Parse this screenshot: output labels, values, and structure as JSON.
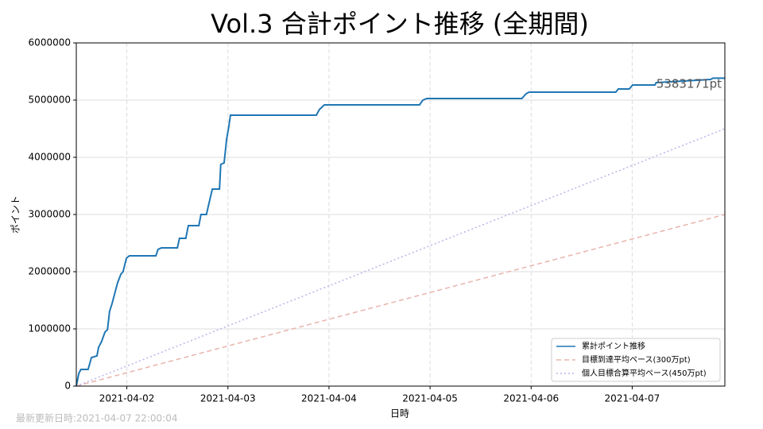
{
  "chart_data": {
    "type": "line",
    "title": "Vol.3 合計ポイント推移 (全期間)",
    "xlabel": "日時",
    "ylabel": "ポイント",
    "xlim": [
      "2021-04-01 12:00",
      "2021-04-07 22:00"
    ],
    "xticks": [
      "2021-04-02",
      "2021-04-03",
      "2021-04-04",
      "2021-04-05",
      "2021-04-06",
      "2021-04-07"
    ],
    "ylim": [
      0,
      6000000
    ],
    "yticks": [
      0,
      1000000,
      2000000,
      3000000,
      4000000,
      5000000,
      6000000
    ],
    "grid": true,
    "legend": "lower right",
    "annotation": "5383171pt",
    "series": [
      {
        "name": "累計ポイント推移",
        "color": "#1f77b4",
        "style": "solid",
        "x": [
          "2021-04-01 12:00",
          "2021-04-01 12:36",
          "2021-04-01 13:06",
          "2021-04-01 14:48",
          "2021-04-01 15:36",
          "2021-04-01 16:54",
          "2021-04-01 17:18",
          "2021-04-01 18:00",
          "2021-04-01 18:48",
          "2021-04-01 19:24",
          "2021-04-01 19:54",
          "2021-04-01 20:30",
          "2021-04-01 21:12",
          "2021-04-01 21:48",
          "2021-04-01 22:36",
          "2021-04-01 23:06",
          "2021-04-01 23:54",
          "2021-04-02 00:36",
          "2021-04-02 06:54",
          "2021-04-02 07:24",
          "2021-04-02 08:12",
          "2021-04-02 12:00",
          "2021-04-02 12:30",
          "2021-04-02 14:00",
          "2021-04-02 14:36",
          "2021-04-02 17:06",
          "2021-04-02 17:36",
          "2021-04-02 18:54",
          "2021-04-02 19:30",
          "2021-04-02 20:18",
          "2021-04-02 22:00",
          "2021-04-02 22:18",
          "2021-04-02 23:06",
          "2021-04-02 23:42",
          "2021-04-03 00:12",
          "2021-04-03 00:36",
          "2021-04-03 21:00",
          "2021-04-03 21:42",
          "2021-04-03 22:54",
          "2021-04-04 21:30",
          "2021-04-04 22:18",
          "2021-04-04 23:12",
          "2021-04-05 21:48",
          "2021-04-05 22:48",
          "2021-04-05 23:30",
          "2021-04-06 20:06",
          "2021-04-06 20:42",
          "2021-04-06 23:18",
          "2021-04-07 00:06",
          "2021-04-07 05:24",
          "2021-04-07 05:42",
          "2021-04-07 18:36",
          "2021-04-07 19:12",
          "2021-04-07 22:00"
        ],
        "values": [
          0,
          222000,
          292000,
          292000,
          500000,
          528000,
          680000,
          778000,
          944000,
          986000,
          1306000,
          1444000,
          1639000,
          1806000,
          1958000,
          2000000,
          2236000,
          2278000,
          2278000,
          2389000,
          2417000,
          2417000,
          2583000,
          2583000,
          2806000,
          2806000,
          3000000,
          3000000,
          3194000,
          3444000,
          3444000,
          3875000,
          3903000,
          4319000,
          4528000,
          4736000,
          4736000,
          4833000,
          4917000,
          4917000,
          5000000,
          5028000,
          5028000,
          5111000,
          5139000,
          5139000,
          5194000,
          5194000,
          5264000,
          5264000,
          5306000,
          5361000,
          5383171,
          5383171
        ]
      },
      {
        "name": "目標到達平均ペース(300万pt)",
        "color": "#e8b4ac",
        "style": "dashed",
        "x": [
          "2021-04-01 12:00",
          "2021-04-07 22:00"
        ],
        "values": [
          0,
          3000000
        ]
      },
      {
        "name": "個人目標合算平均ペース(450万pt)",
        "color": "#b8b4ec",
        "style": "dotted",
        "x": [
          "2021-04-01 12:00",
          "2021-04-07 22:00"
        ],
        "values": [
          0,
          4500000
        ]
      }
    ]
  },
  "footer": "最新更新日時:2021-04-07 22:00:04"
}
